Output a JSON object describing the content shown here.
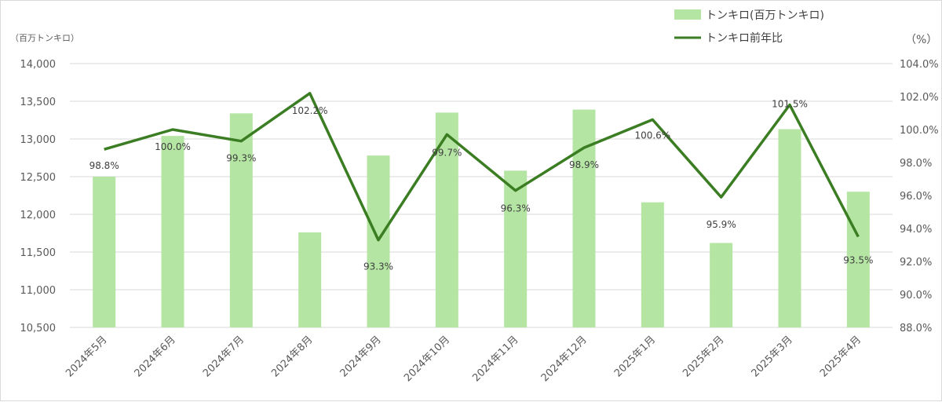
{
  "chart_data": {
    "type": "bar",
    "categories": [
      "2024年5月",
      "2024年6月",
      "2024年7月",
      "2024年8月",
      "2024年9月",
      "2024年10月",
      "2024年11月",
      "2024年12月",
      "2025年1月",
      "2025年2月",
      "2025年3月",
      "2025年4月"
    ],
    "series": [
      {
        "name": "トンキロ(百万トンキロ)",
        "type": "bar",
        "axis": "left",
        "values": [
          12500,
          13040,
          13340,
          11760,
          12780,
          13350,
          12580,
          13390,
          12160,
          11620,
          13130,
          12300
        ]
      },
      {
        "name": "トンキロ前年比",
        "type": "line",
        "axis": "right",
        "values": [
          98.8,
          100.0,
          99.3,
          102.2,
          93.3,
          99.7,
          96.3,
          98.9,
          100.6,
          95.9,
          101.5,
          93.5
        ],
        "labels": [
          "98.8%",
          "100.0%",
          "99.3%",
          "102.2%",
          "93.3%",
          "99.7%",
          "96.3%",
          "98.9%",
          "100.6%",
          "95.9%",
          "101.5%",
          "93.5%"
        ]
      }
    ],
    "y_left": {
      "unit_label": "（百万トンキロ）",
      "ylim": [
        10500,
        14000
      ],
      "ticks": [
        10500,
        11000,
        11500,
        12000,
        12500,
        13000,
        13500,
        14000
      ],
      "tick_labels": [
        "10,500",
        "11,000",
        "11,500",
        "12,000",
        "12,500",
        "13,000",
        "13,500",
        "14,000"
      ]
    },
    "y_right": {
      "unit_label": "（%）",
      "ylim": [
        88.0,
        104.0
      ],
      "ticks": [
        88,
        90,
        92,
        94,
        96,
        98,
        100,
        102,
        104
      ],
      "tick_labels": [
        "88.0%",
        "90.0%",
        "92.0%",
        "94.0%",
        "96.0%",
        "98.0%",
        "100.0%",
        "102.0%",
        "104.0%"
      ]
    },
    "grid": true,
    "legend_position": "top-right",
    "colors": {
      "bar": "#b4e5a2",
      "line": "#3a7d22",
      "grid": "#d9d9d9"
    }
  }
}
